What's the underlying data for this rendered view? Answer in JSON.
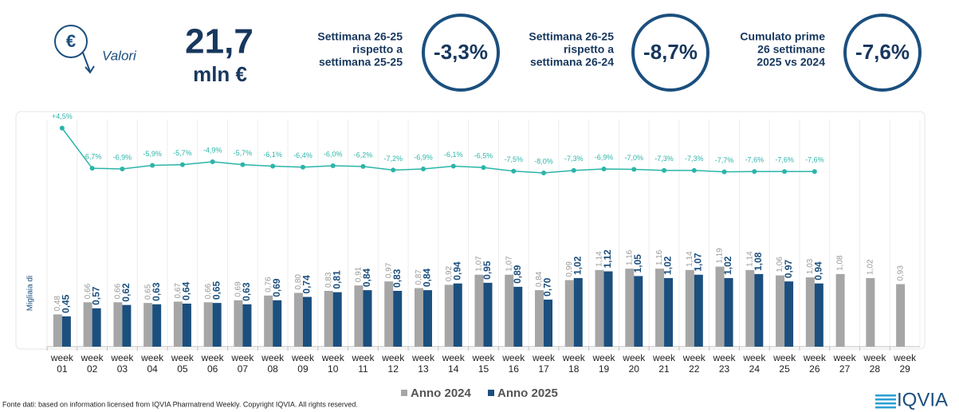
{
  "header": {
    "unit_label": "Valori",
    "big_value": "21,7",
    "big_unit": "mln €",
    "kpis": [
      {
        "lines": [
          "Settimana 26-25",
          "rispetto a",
          "settimana 25-25"
        ],
        "value": "-3,3%"
      },
      {
        "lines": [
          "Settimana 26-25",
          "rispetto a",
          "settimana 26-24"
        ],
        "value": "-8,7%"
      },
      {
        "lines": [
          "Cumulato prime",
          "26 settimane",
          "2025 vs 2024"
        ],
        "value": "-7,6%"
      }
    ]
  },
  "chart_data": {
    "type": "bar",
    "y_label": "Migliaia di",
    "categories": [
      "week 01",
      "week 02",
      "week 03",
      "week 04",
      "week 05",
      "week 06",
      "week 07",
      "week 08",
      "week 09",
      "week 10",
      "week 11",
      "week 12",
      "week 13",
      "week 14",
      "week 15",
      "week 16",
      "week 17",
      "week 18",
      "week 19",
      "week 20",
      "week 21",
      "week 22",
      "week 23",
      "week 24",
      "week 25",
      "week 26",
      "week 27",
      "week 28",
      "week 29"
    ],
    "ylim": [
      0,
      1.6
    ],
    "series": [
      {
        "name": "Anno 2024",
        "color": "#a6a6a6",
        "values": [
          0.48,
          0.66,
          0.66,
          0.65,
          0.67,
          0.66,
          0.69,
          0.76,
          0.8,
          0.83,
          0.91,
          0.97,
          0.87,
          0.92,
          1.07,
          1.07,
          0.84,
          0.99,
          1.14,
          1.16,
          1.16,
          1.14,
          1.19,
          1.14,
          1.06,
          1.03,
          1.08,
          1.02,
          0.93
        ],
        "value_labels": [
          "0,48",
          "0,66",
          "0,66",
          "0,65",
          "0,67",
          "0,66",
          "0,69",
          "0,76",
          "0,80",
          "0,83",
          "0,91",
          "0,97",
          "0,87",
          "0,92",
          "1,07",
          "1,07",
          "0,84",
          "0,99",
          "1,14",
          "1,16",
          "1,16",
          "1,14",
          "1,19",
          "1,14",
          "1,06",
          "1,03",
          "1,08",
          "1,02",
          "0,93"
        ]
      },
      {
        "name": "Anno 2025",
        "color": "#1b4f7e",
        "values": [
          0.45,
          0.57,
          0.62,
          0.63,
          0.64,
          0.65,
          0.63,
          0.69,
          0.74,
          0.81,
          0.84,
          0.83,
          0.84,
          0.94,
          0.95,
          0.89,
          0.7,
          1.02,
          1.12,
          1.05,
          1.02,
          1.07,
          1.02,
          1.08,
          0.97,
          0.94,
          null,
          null,
          null
        ],
        "value_labels": [
          "0,45",
          "0,57",
          "0,62",
          "0,63",
          "0,64",
          "0,65",
          "0,63",
          "0,69",
          "0,74",
          "0,81",
          "0,84",
          "0,83",
          "0,84",
          "0,94",
          "0,95",
          "0,89",
          "0,70",
          "1,02",
          "1,12",
          "1,05",
          "1,02",
          "1,07",
          "1,02",
          "1,08",
          "0,97",
          "0,94",
          null,
          null,
          null
        ]
      }
    ],
    "change_line": {
      "color": "#2bb5a8",
      "y2lim": [
        -10,
        6
      ],
      "values": [
        4.5,
        -6.7,
        -6.9,
        -5.9,
        -5.7,
        -4.9,
        -5.7,
        -6.1,
        -6.4,
        -6.0,
        -6.2,
        -7.2,
        -6.9,
        -6.1,
        -6.5,
        -7.5,
        -8.0,
        -7.3,
        -6.9,
        -7.0,
        -7.3,
        -7.3,
        -7.7,
        -7.6,
        -7.6,
        -7.6
      ],
      "value_labels": [
        "+4,5%",
        "-6,7%",
        "-6,9%",
        "-5,9%",
        "-5,7%",
        "-4,9%",
        "-5,7%",
        "-6,1%",
        "-6,4%",
        "-6,0%",
        "-6,2%",
        "-7,2%",
        "-6,9%",
        "-6,1%",
        "-6,5%",
        "-7,5%",
        "-8,0%",
        "-7,3%",
        "-6,9%",
        "-7,0%",
        "-7,3%",
        "-7,3%",
        "-7,7%",
        "-7,6%",
        "-7,6%",
        "-7,6%"
      ]
    },
    "source": "Fonte dati: based on information licensed from IQVIA Pharmatrend Weekly. Copyright IQVIA. All rights reserved.",
    "logo": "IQVIA"
  }
}
